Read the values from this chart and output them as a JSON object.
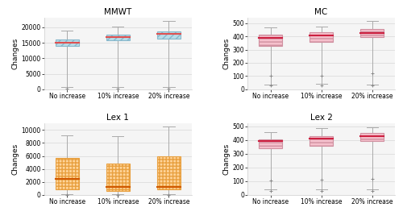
{
  "titles": [
    "MMWT",
    "MC",
    "Lex 1",
    "Lex 2"
  ],
  "categories": [
    "No increase",
    "10% increase",
    "20% increase"
  ],
  "ylabel": "Changes",
  "mmwt": {
    "whislo": [
      650,
      750,
      800
    ],
    "q1": [
      14000,
      15700,
      16400
    ],
    "med": [
      15100,
      16700,
      17900
    ],
    "q3": [
      16100,
      17600,
      18600
    ],
    "whishi": [
      19000,
      20100,
      22000
    ],
    "fliers_lo": [
      280,
      310,
      330
    ],
    "color": "#b8dce8",
    "edgecolor": "#88b8cc",
    "medcolor": "#e05050",
    "hatch": "////",
    "ylim": [
      0,
      23000
    ],
    "yticks": [
      0,
      5000,
      10000,
      15000,
      20000
    ]
  },
  "mc": {
    "whislo": [
      38,
      42,
      38
    ],
    "q1": [
      330,
      360,
      395
    ],
    "med": [
      390,
      408,
      428
    ],
    "q3": [
      415,
      432,
      455
    ],
    "whishi": [
      468,
      472,
      518
    ],
    "fliers_lo": [
      28,
      28,
      28
    ],
    "fliers_hi": [
      103,
      103,
      118
    ],
    "color": "#f5c0cc",
    "edgecolor": "#d090a0",
    "medcolor": "#cc2040",
    "hatch": "----",
    "ylim": [
      0,
      540
    ],
    "yticks": [
      0,
      100,
      200,
      300,
      400,
      500
    ]
  },
  "lex1": {
    "whislo": [
      80,
      80,
      60
    ],
    "q1": [
      800,
      600,
      800
    ],
    "med": [
      2500,
      1200,
      1200
    ],
    "q3": [
      5700,
      4800,
      5900
    ],
    "whishi": [
      9200,
      9100,
      10600
    ],
    "fliers_lo": [
      25,
      25,
      25
    ],
    "color": "#ffd49a",
    "edgecolor": "#e8a040",
    "medcolor": "#d05800",
    "hatch": "++++",
    "ylim": [
      0,
      11000
    ],
    "yticks": [
      0,
      2000,
      4000,
      6000,
      8000,
      10000
    ]
  },
  "lex2": {
    "whislo": [
      38,
      38,
      38
    ],
    "q1": [
      340,
      360,
      390
    ],
    "med": [
      390,
      410,
      430
    ],
    "q3": [
      405,
      430,
      450
    ],
    "whishi": [
      455,
      488,
      495
    ],
    "fliers_lo": [
      28,
      28,
      28
    ],
    "fliers_hi": [
      103,
      110,
      118
    ],
    "color": "#f5c0cc",
    "edgecolor": "#d090a0",
    "medcolor": "#cc2040",
    "hatch": "----",
    "ylim": [
      0,
      520
    ],
    "yticks": [
      0,
      100,
      200,
      300,
      400,
      500
    ]
  }
}
